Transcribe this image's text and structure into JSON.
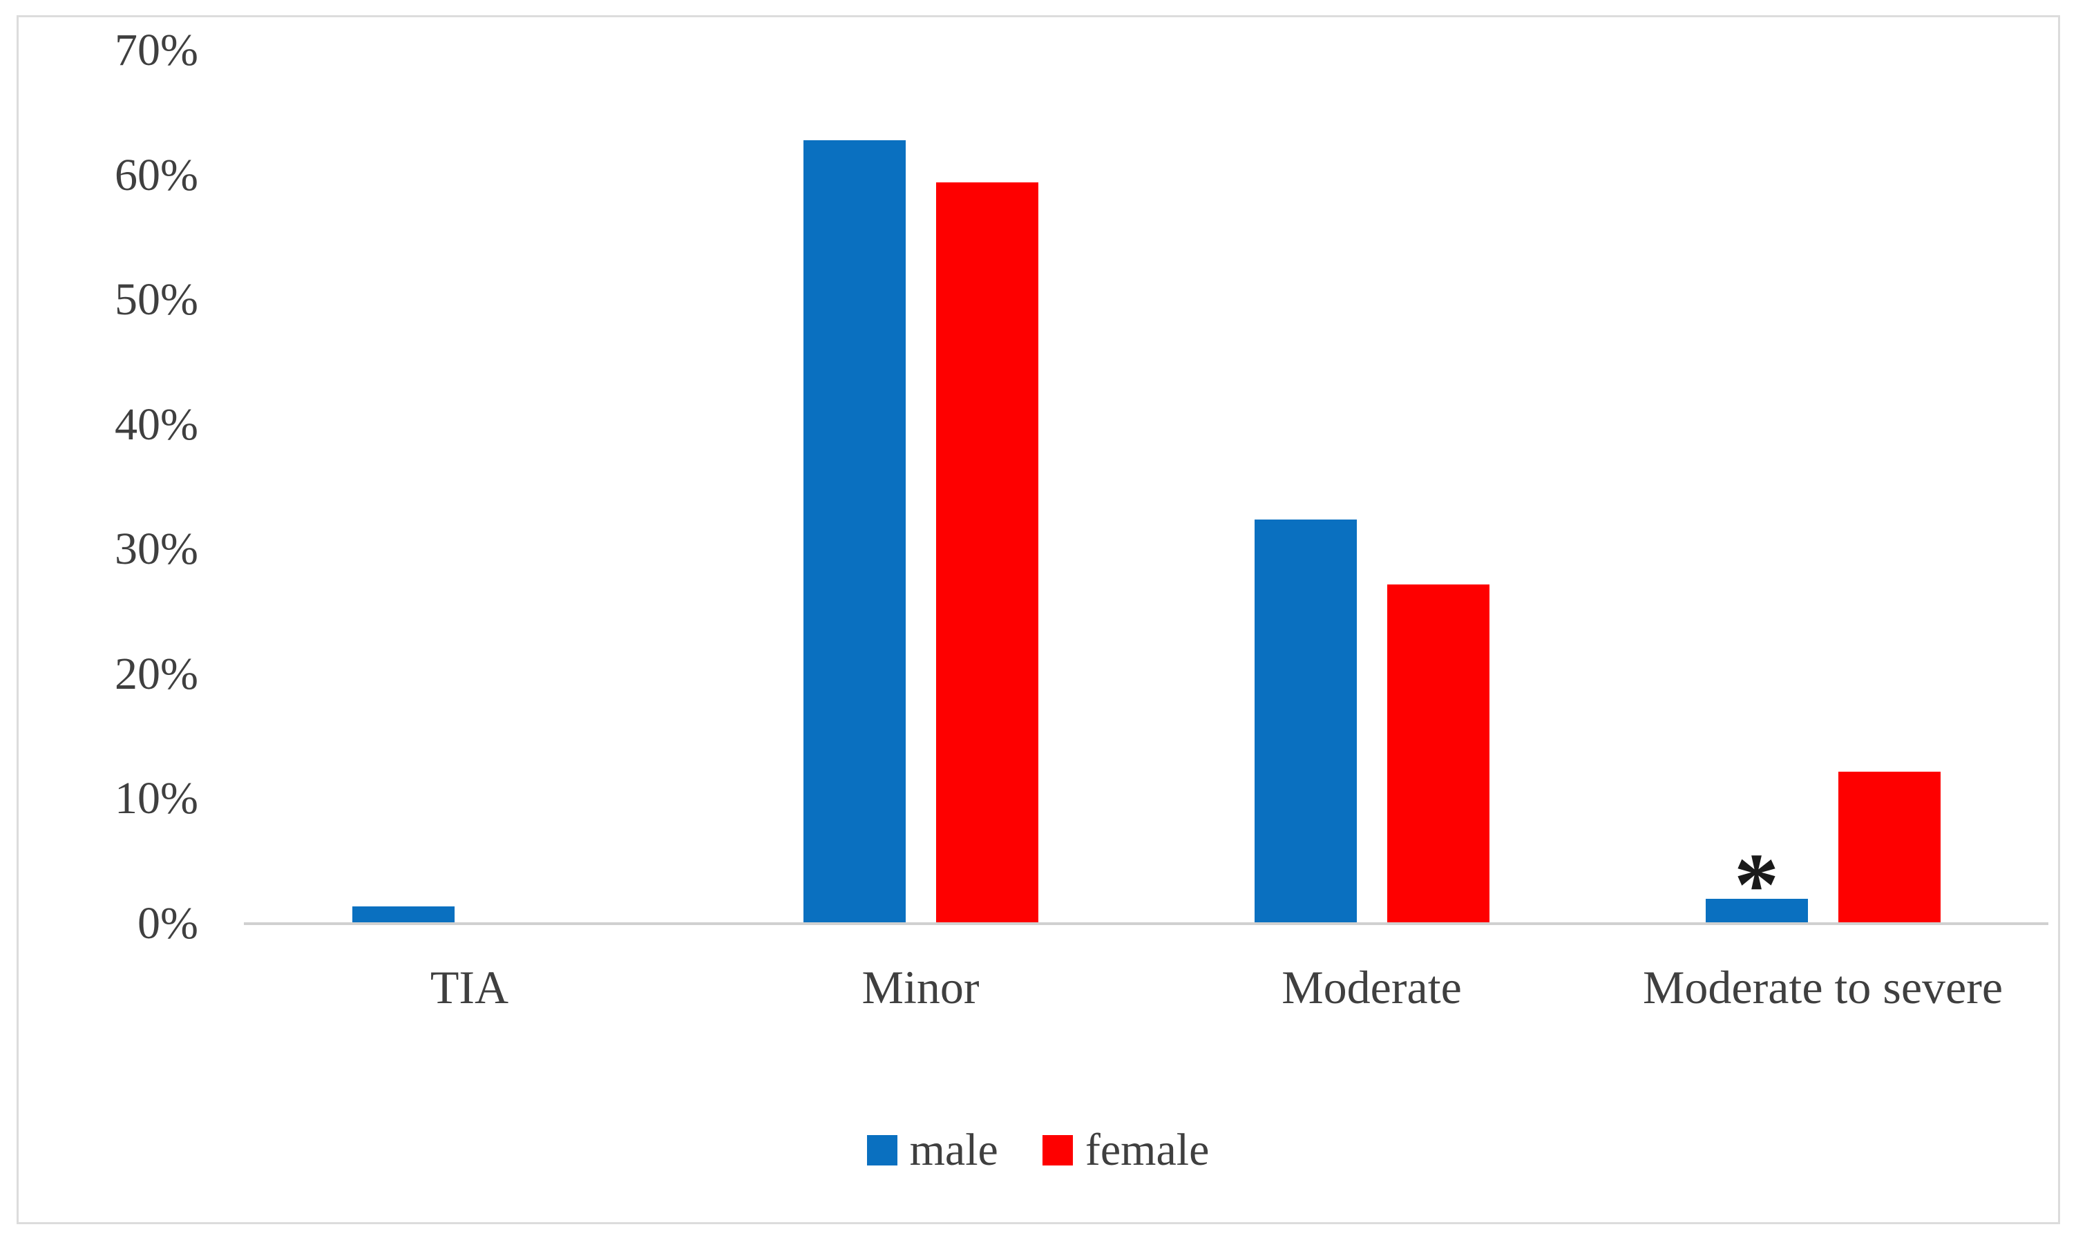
{
  "figure": {
    "background": "#ffffff",
    "border_color": "#dcdcdc",
    "axis_line_color": "#d0d0d0",
    "label_text_color": "#3f3f3f"
  },
  "chart_data": {
    "type": "bar",
    "title": "",
    "xlabel": "",
    "ylabel": "",
    "categories": [
      "TIA",
      "Minor",
      "Moderate",
      "Moderate to severe"
    ],
    "series": [
      {
        "name": "male",
        "color": "#0a70c0",
        "values": [
          1.4,
          62.8,
          32.4,
          2.0
        ]
      },
      {
        "name": "female",
        "color": "#fe0000",
        "values": [
          0,
          59.4,
          27.2,
          12.2
        ]
      }
    ],
    "value_unit": "%",
    "ylim": [
      0,
      70
    ],
    "ytick_step": 10,
    "yticks": [
      "0%",
      "10%",
      "20%",
      "30%",
      "40%",
      "50%",
      "60%",
      "70%"
    ],
    "grid": false,
    "legend_position": "bottom-center",
    "legend": [
      {
        "label": "male",
        "color": "#0a70c0"
      },
      {
        "label": "female",
        "color": "#fe0000"
      }
    ],
    "annotations": [
      {
        "text": "*",
        "category_index": 3,
        "series": "male",
        "meaning": "significance-marker"
      }
    ]
  }
}
